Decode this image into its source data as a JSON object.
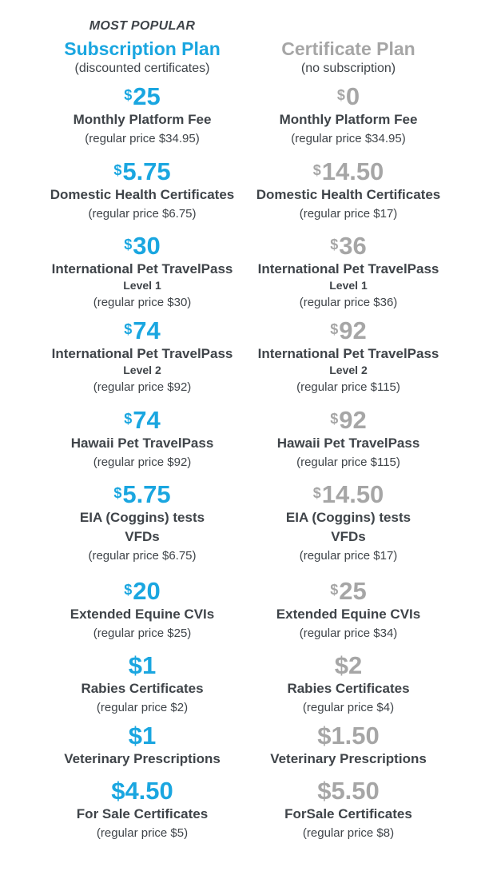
{
  "header": {
    "most_popular": "MOST POPULAR"
  },
  "plans": [
    {
      "title": "Subscription Plan",
      "subtitle": "(discounted certificates)",
      "accent": "#1aa6e0",
      "items": [
        {
          "currency": "$",
          "amount": "25",
          "name": "Monthly Platform Fee",
          "regular": "(regular price $34.95)"
        },
        {
          "currency": "$",
          "amount": "5.75",
          "name": "Domestic Health Certificates",
          "regular": "(regular price $6.75)"
        },
        {
          "currency": "$",
          "amount": "30",
          "name": "International Pet TravelPass",
          "level": "Level 1",
          "regular": "(regular price $30)"
        },
        {
          "currency": "$",
          "amount": "74",
          "name": "International Pet TravelPass",
          "level": "Level 2",
          "regular": "(regular price $92)"
        },
        {
          "currency": "$",
          "amount": "74",
          "name": "Hawaii Pet TravelPass",
          "regular": "(regular price $92)"
        },
        {
          "currency": "$",
          "amount": "5.75",
          "name": "EIA (Coggins) tests",
          "extra": "VFDs",
          "regular": "(regular price $6.75)"
        },
        {
          "currency": "$",
          "amount": "20",
          "name": "Extended Equine CVIs",
          "regular": "(regular price $25)"
        },
        {
          "currency": "",
          "amount": "$1",
          "name": "Rabies Certificates",
          "regular": "(regular price $2)"
        },
        {
          "currency": "",
          "amount": "$1",
          "name": "Veterinary Prescriptions"
        },
        {
          "currency": "",
          "amount": "$4.50",
          "name": "For Sale Certificates",
          "regular": "(regular price $5)"
        }
      ]
    },
    {
      "title": "Certificate Plan",
      "subtitle": "(no subscription)",
      "accent": "#a6a6a6",
      "items": [
        {
          "currency": "$",
          "amount": "0",
          "name": "Monthly Platform Fee",
          "regular": "(regular price $34.95)"
        },
        {
          "currency": "$",
          "amount": "14.50",
          "name": "Domestic Health Certificates",
          "regular": "(regular price $17)"
        },
        {
          "currency": "$",
          "amount": "36",
          "name": "International Pet TravelPass",
          "level": "Level 1",
          "regular": "(regular price $36)"
        },
        {
          "currency": "$",
          "amount": "92",
          "name": "International Pet TravelPass",
          "level": "Level 2",
          "regular": "(regular price $115)"
        },
        {
          "currency": "$",
          "amount": "92",
          "name": "Hawaii Pet TravelPass",
          "regular": "(regular price $115)"
        },
        {
          "currency": "$",
          "amount": "14.50",
          "name": "EIA (Coggins) tests",
          "extra": "VFDs",
          "regular": "(regular price $17)"
        },
        {
          "currency": "$",
          "amount": "25",
          "name": "Extended Equine CVIs",
          "regular": "(regular price $34)"
        },
        {
          "currency": "",
          "amount": "$2",
          "name": "Rabies Certificates",
          "regular": "(regular price $4)"
        },
        {
          "currency": "",
          "amount": "$1.50",
          "name": "Veterinary Prescriptions"
        },
        {
          "currency": "",
          "amount": "$5.50",
          "name": "ForSale Certificates",
          "regular": "(regular price $8)"
        }
      ]
    }
  ]
}
